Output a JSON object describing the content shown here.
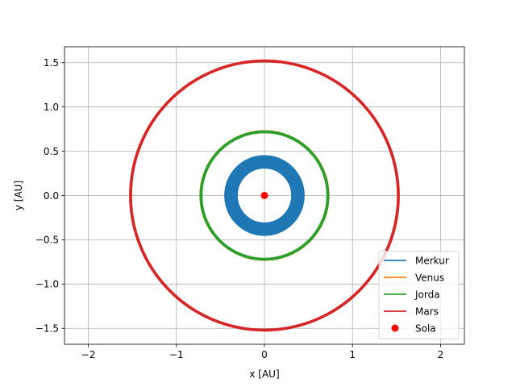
{
  "chart_data": {
    "type": "line",
    "xlabel": "x [AU]",
    "ylabel": "y [AU]",
    "xlim": [
      -2.27,
      2.27
    ],
    "ylim": [
      -1.68,
      1.68
    ],
    "xticks": [
      -2,
      -1,
      0,
      1,
      2
    ],
    "xtick_labels": [
      "−2",
      "−1",
      "0",
      "1",
      "2"
    ],
    "yticks": [
      -1.5,
      -1.0,
      -0.5,
      0.0,
      0.5,
      1.0,
      1.5
    ],
    "ytick_labels": [
      "−1.5",
      "−1.0",
      "−0.5",
      "0.0",
      "0.5",
      "1.0",
      "1.5"
    ],
    "grid": true,
    "legend_position": "lower-right",
    "series": [
      {
        "name": "Merkur",
        "kind": "orbit",
        "color": "#1f77b4",
        "r_min": 0.31,
        "r_max": 0.45
      },
      {
        "name": "Venus",
        "kind": "orbit",
        "color": "#ff7f0e",
        "r_min": 0.72,
        "r_max": 0.73
      },
      {
        "name": "Jorda",
        "kind": "orbit",
        "color": "#2ca02c",
        "r_min": 0.71,
        "r_max": 0.73
      },
      {
        "name": "Mars",
        "kind": "orbit",
        "color": "#d62728",
        "r_min": 1.51,
        "r_max": 1.53
      },
      {
        "name": "Sola",
        "kind": "point",
        "color": "#ff0000",
        "x": 0,
        "y": 0
      }
    ]
  }
}
